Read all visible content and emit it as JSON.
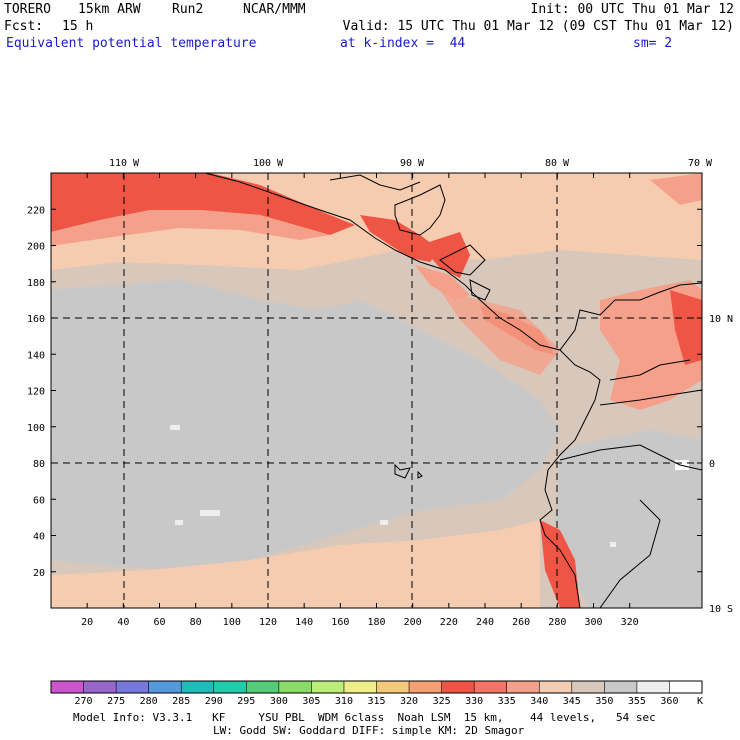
{
  "header": {
    "model": "TORERO",
    "resolution": "15km ARW",
    "run": "Run2",
    "org": "NCAR/MMM",
    "init": "Init: 00 UTC Thu 01 Mar 12",
    "fcst_label": "Fcst:",
    "fcst_value": "15 h",
    "valid": "Valid: 15 UTC Thu 01 Mar 12 (09 CST Thu 01 Mar 12)",
    "field": "Equivalent potential temperature",
    "level": "at k-index =  44",
    "smoothing": "sm= 2"
  },
  "map": {
    "lon_labels": [
      "110 W",
      "100 W",
      "90 W",
      "80 W",
      "70 W"
    ],
    "lat_labels": [
      "10 N",
      "0",
      "10 S"
    ],
    "y_ticks": [
      "20",
      "40",
      "60",
      "80",
      "100",
      "120",
      "140",
      "160",
      "180",
      "200",
      "220"
    ],
    "x_ticks": [
      "20",
      "40",
      "60",
      "80",
      "100",
      "120",
      "140",
      "160",
      "180",
      "200",
      "220",
      "240",
      "260",
      "280",
      "300",
      "320"
    ]
  },
  "colorbar": {
    "labels": [
      "270",
      "275",
      "280",
      "285",
      "290",
      "295",
      "300",
      "305",
      "310",
      "315",
      "320",
      "325",
      "330",
      "335",
      "340",
      "345",
      "350",
      "355",
      "360"
    ],
    "unit": "K",
    "colors": [
      "#cc55cc",
      "#9966cc",
      "#7777dd",
      "#5599dd",
      "#22bbbb",
      "#22ccaa",
      "#55cc77",
      "#88dd66",
      "#bbee77",
      "#eeee88",
      "#f5c97a",
      "#f5a070",
      "#ee5544",
      "#f57266",
      "#f5a08a",
      "#f5ccb0",
      "#d8c8bc",
      "#c8c8c8",
      "#eeeeee",
      "#ffffff"
    ]
  },
  "footer": {
    "line1": "Model Info: V3.3.1   KF     YSU PBL  WDM 6class  Noah LSM  15 km,    44 levels,   54 sec",
    "line2": "LW: Godd SW: Goddard DIFF: simple KM: 2D Smagor"
  }
}
